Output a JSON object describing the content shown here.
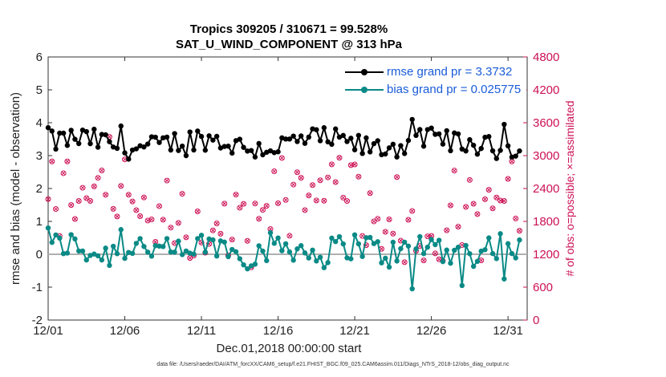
{
  "title_line1": "Tropics 309205 / 310671 = 99.528%",
  "title_line2": "SAT_U_WIND_COMPONENT @ 313 hPa",
  "footer": "data file: /Users/raeder/DAI/ATM_forcXX/CAM6_setup/f.e21.FHIST_BGC.f09_025.CAM6assim.011/Diags_NTrS_2018-12/obs_diag_output.nc",
  "colors": {
    "rmse": "#000000",
    "bias": "#0a8a86",
    "obs": "#cc1155",
    "legend_text": "#1a5cd8",
    "zero_line": "#b0b0b0"
  },
  "chart_data": {
    "type": "line",
    "xlabel": "Dec.01,2018 00:00:00 start",
    "ylabel_left": "rmse and bias (model - observation)",
    "ylabel_right": "# of obs: o=possible; ×=assimilated",
    "x_range": [
      0,
      31.25
    ],
    "ylim_left": [
      -2,
      6
    ],
    "ylim_right": [
      0,
      4800
    ],
    "x_ticks": [
      {
        "x": 0,
        "label": "12/01"
      },
      {
        "x": 5,
        "label": "12/06"
      },
      {
        "x": 10,
        "label": "12/11"
      },
      {
        "x": 15,
        "label": "12/16"
      },
      {
        "x": 20,
        "label": "12/21"
      },
      {
        "x": 25,
        "label": "12/26"
      },
      {
        "x": 30,
        "label": "12/31"
      }
    ],
    "y_ticks_left": [
      -2,
      -1,
      0,
      1,
      2,
      3,
      4,
      5,
      6
    ],
    "y_ticks_right": [
      0,
      600,
      1200,
      1800,
      2400,
      3000,
      3600,
      4200,
      4800
    ],
    "zero_line": 0,
    "legend": [
      {
        "name": "rmse grand pr = 3.3732",
        "series": "rmse"
      },
      {
        "name": "bias grand pr = 0.025775",
        "series": "bias"
      }
    ],
    "obs_point_pattern": [
      2100,
      2700,
      1750,
      1500,
      2400,
      2400,
      2100,
      1600,
      1450,
      2050,
      2050,
      1700,
      1750,
      1800,
      2200
    ],
    "series_params": {
      "points": 124,
      "step_days": 0.25,
      "rmse_base": 3.37,
      "rmse_amp": 0.35,
      "bias_base": 0.15,
      "bias_amp": 0.45
    },
    "notable_points": [
      {
        "x": 0.0,
        "rmse": 3.85,
        "bias": 0.8
      },
      {
        "x": 4.75,
        "rmse": 3.9,
        "bias": 0.75
      },
      {
        "x": 9.0,
        "rmse": 3.0,
        "bias": 0.1
      },
      {
        "x": 23.75,
        "rmse": 4.1,
        "bias": -1.05
      },
      {
        "x": 27.0,
        "rmse": 3.2,
        "bias": -0.95
      },
      {
        "x": 29.75,
        "rmse": 3.95,
        "bias": -0.75
      }
    ]
  }
}
